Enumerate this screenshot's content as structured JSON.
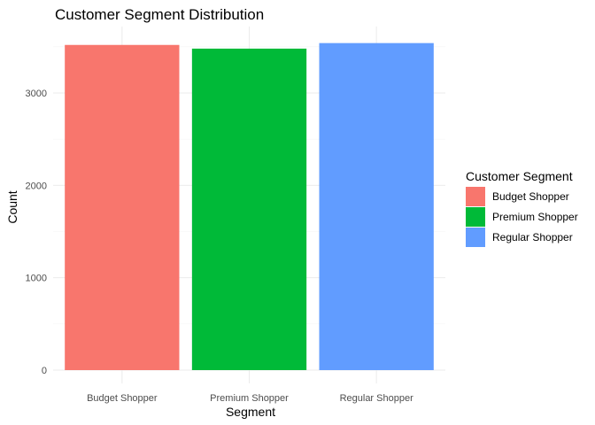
{
  "chart_data": {
    "type": "bar",
    "title": "Customer Segment Distribution",
    "xlabel": "Segment",
    "ylabel": "Count",
    "categories": [
      "Budget Shopper",
      "Premium Shopper",
      "Regular Shopper"
    ],
    "values": [
      3520,
      3480,
      3540
    ],
    "colors": [
      "#F8766D",
      "#00BA38",
      "#619CFF"
    ],
    "ylim": [
      0,
      3700
    ],
    "yticks": [
      0,
      1000,
      2000,
      3000
    ],
    "grid": true,
    "legend": {
      "title": "Customer Segment",
      "position": "right",
      "items": [
        "Budget Shopper",
        "Premium Shopper",
        "Regular Shopper"
      ]
    }
  }
}
